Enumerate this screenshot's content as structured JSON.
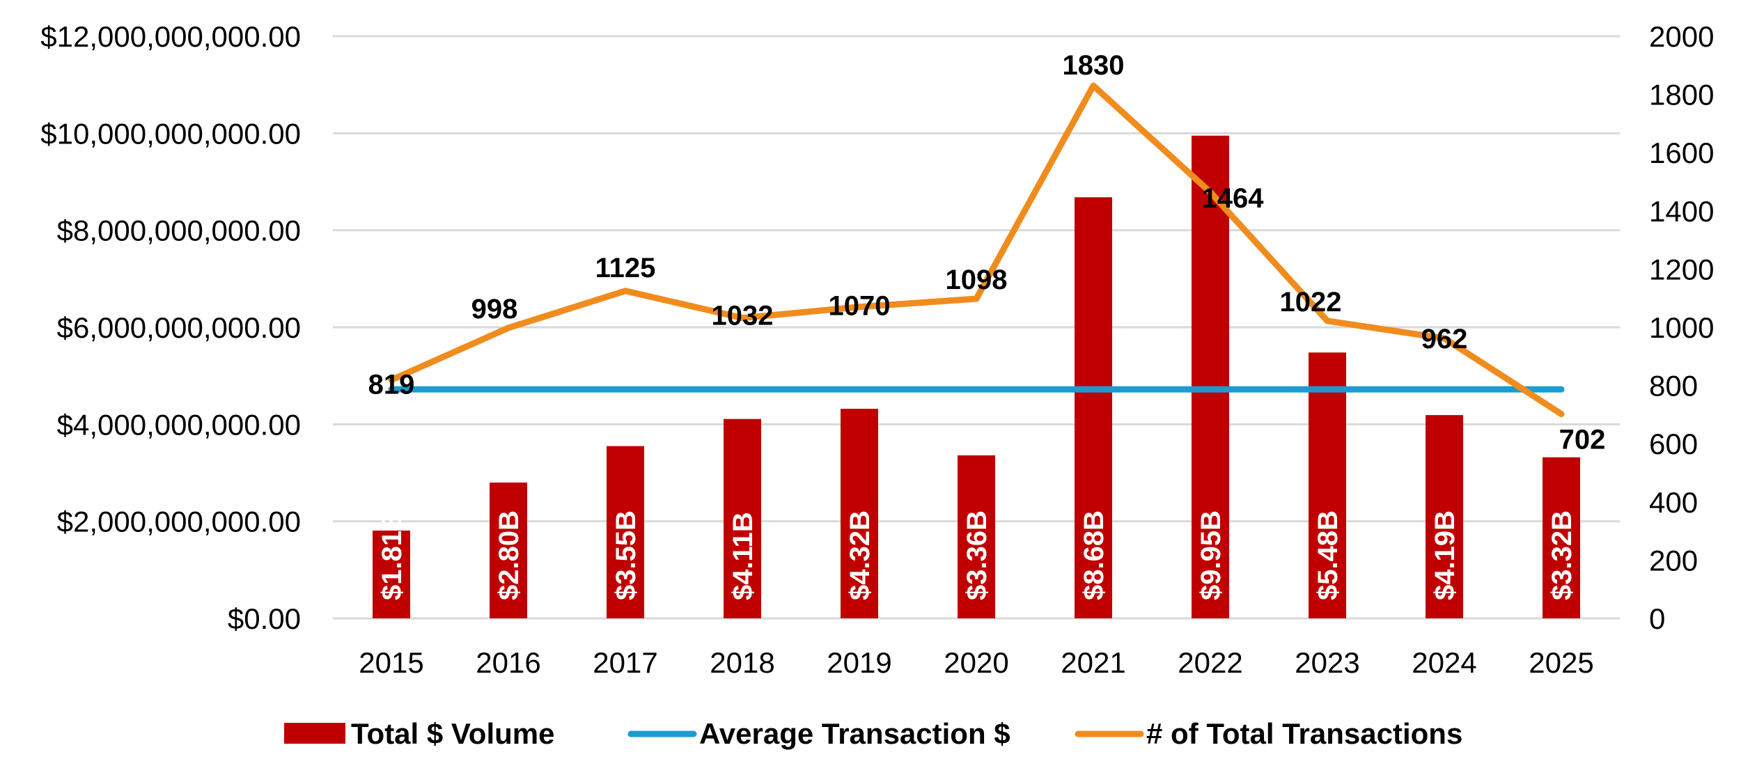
{
  "chart_data": {
    "type": "bar",
    "categories": [
      "2015",
      "2016",
      "2017",
      "2018",
      "2019",
      "2020",
      "2021",
      "2022",
      "2023",
      "2024",
      "2025"
    ],
    "series": [
      {
        "name": "Total $ Volume",
        "type": "bar",
        "axis": "left",
        "values": [
          1810000000,
          2800000000,
          3550000000,
          4110000000,
          4320000000,
          3360000000,
          8680000000,
          9950000000,
          5480000000,
          4190000000,
          3320000000
        ],
        "labels": [
          "$1.81B",
          "$2.80B",
          "$3.55B",
          "$4.11B",
          "$4.32B",
          "$3.36B",
          "$8.68B",
          "$9.95B",
          "$5.48B",
          "$4.19B",
          "$3.32B"
        ],
        "color": "#c00000"
      },
      {
        "name": "Average Transaction $",
        "type": "line",
        "axis": "left",
        "values": [
          4720000000,
          4720000000,
          4720000000,
          4720000000,
          4720000000,
          4720000000,
          4720000000,
          4720000000,
          4720000000,
          4720000000,
          4720000000
        ],
        "color": "#1b9bd1"
      },
      {
        "name": "# of Total Transactions",
        "type": "line",
        "axis": "right",
        "values": [
          819,
          998,
          1125,
          1032,
          1070,
          1098,
          1830,
          1464,
          1022,
          962,
          702
        ],
        "labels": [
          "819",
          "998",
          "1125",
          "1032",
          "1070",
          "1098",
          "1830",
          "1464",
          "1022",
          "962",
          "702"
        ],
        "color": "#f08c1e"
      }
    ],
    "y_left": {
      "ylim": [
        0,
        12000000000
      ],
      "ticks": [
        "$0.00",
        "$2,000,000,000.00",
        "$4,000,000,000.00",
        "$6,000,000,000.00",
        "$8,000,000,000.00",
        "$10,000,000,000.00",
        "$12,000,000,000.00"
      ]
    },
    "y_right": {
      "ylim": [
        0,
        2000
      ],
      "ticks": [
        "0",
        "200",
        "400",
        "600",
        "800",
        "1000",
        "1200",
        "1400",
        "1600",
        "1800",
        "2000"
      ]
    },
    "grid": true,
    "legend": {
      "position": "bottom",
      "entries": [
        "Total $ Volume",
        "Average Transaction $",
        "# of Total Transactions"
      ]
    },
    "title": "",
    "xlabel": "",
    "ylabel": ""
  }
}
